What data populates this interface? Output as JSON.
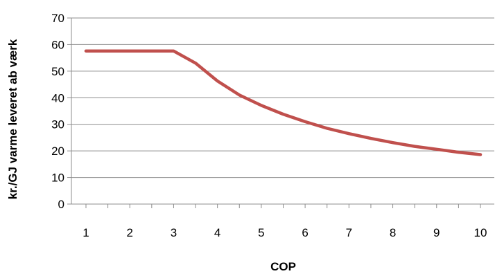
{
  "chart_data": {
    "type": "line",
    "title": "",
    "xlabel": "COP",
    "ylabel": "kr./GJ varme leveret ab værk",
    "x": [
      1,
      1.5,
      2,
      2.5,
      3,
      3.5,
      4,
      4.5,
      5,
      5.5,
      6,
      6.5,
      7,
      7.5,
      8,
      8.5,
      9,
      9.5,
      10
    ],
    "series": [
      {
        "values": [
          57.6,
          57.6,
          57.6,
          57.6,
          57.6,
          53.0,
          46.3,
          41.0,
          37.1,
          33.8,
          31.0,
          28.5,
          26.5,
          24.7,
          23.1,
          21.7,
          20.6,
          19.5,
          18.6
        ],
        "color": "#C0504D"
      }
    ],
    "xticks": [
      "1",
      "2",
      "3",
      "4",
      "5",
      "6",
      "7",
      "8",
      "9",
      "10"
    ],
    "yticks": [
      "0",
      "10",
      "20",
      "30",
      "40",
      "50",
      "60",
      "70"
    ],
    "xlim": [
      1,
      10
    ],
    "ylim": [
      0,
      70
    ],
    "grid": true,
    "legend": "none"
  }
}
